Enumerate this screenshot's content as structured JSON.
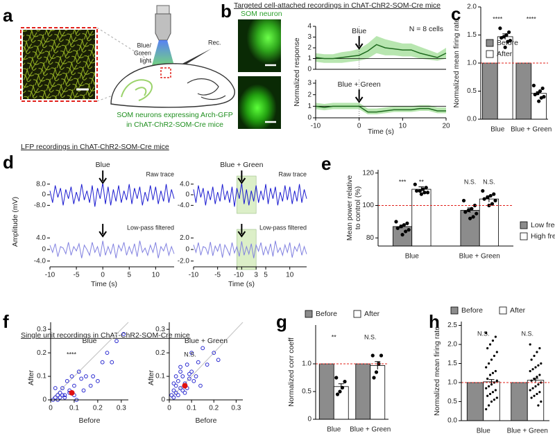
{
  "figure": {
    "panel_labels": [
      "a",
      "b",
      "c",
      "d",
      "e",
      "f",
      "g",
      "h"
    ],
    "panel_a": {
      "light_label": [
        "Blue/",
        "Green",
        "light"
      ],
      "rec_label": "Rec.",
      "caption": [
        "SOM neurons expressing Arch-GFP",
        "in ChAT-ChR2-SOM-Cre mice"
      ]
    },
    "panel_b": {
      "heading": "Targeted cell-attached recordings in ChAT-ChR2-SOM-Cre mice",
      "image_label": "SOM neuron"
    },
    "panel_d": {
      "heading": "LFP recordings in ChAT-ChR2-SOM-Cre mice"
    },
    "panel_f": {
      "heading": "Single unit recordings in ChAT-ChR2-SOM-Cre mice"
    }
  },
  "chart_data": [
    {
      "type": "line",
      "ylabel": "Normalized response",
      "annotation": "Blue",
      "note": "N = 8 cells",
      "event_x": 0,
      "reference_line": 1,
      "x": [
        -10,
        -8,
        -6,
        -4,
        -2,
        0,
        2,
        4,
        6,
        8,
        10,
        12,
        14,
        16,
        18,
        20
      ],
      "xlim": [
        -10,
        20
      ],
      "ylim": [
        0,
        4
      ],
      "yticks": [
        0,
        1,
        2,
        3,
        4
      ],
      "series": [
        {
          "color": "#1e6b1e",
          "band_color": "#b8e6b0",
          "values": [
            1.1,
            1.0,
            1.0,
            1.1,
            1.2,
            1.3,
            1.7,
            2.3,
            2.0,
            1.9,
            1.8,
            1.8,
            1.5,
            1.3,
            1.1,
            1.5
          ],
          "lower": [
            0.7,
            0.6,
            0.6,
            0.6,
            0.7,
            0.8,
            1.0,
            1.5,
            1.3,
            1.3,
            1.2,
            1.2,
            1.0,
            0.9,
            0.8,
            1.0
          ],
          "upper": [
            1.5,
            1.4,
            1.4,
            1.6,
            1.7,
            1.9,
            2.4,
            3.1,
            2.8,
            2.6,
            2.4,
            2.4,
            2.1,
            1.8,
            1.5,
            2.0
          ]
        }
      ]
    },
    {
      "type": "line",
      "xlabel": "Time (s)",
      "annotation": "Blue + Green",
      "event_x": 0,
      "reference_line": 1,
      "x": [
        -10,
        -8,
        -6,
        -4,
        -2,
        0,
        2,
        4,
        6,
        8,
        10,
        12,
        14,
        16,
        18,
        20
      ],
      "xlim": [
        -10,
        20
      ],
      "xticks": [
        -10,
        0,
        10,
        20
      ],
      "ylim": [
        0,
        3.3
      ],
      "yticks": [
        0,
        1,
        2,
        3
      ],
      "series": [
        {
          "color": "#1e6b1e",
          "band_color": "#b8e6b0",
          "values": [
            1.0,
            0.9,
            1.0,
            1.0,
            1.0,
            1.0,
            0.5,
            0.5,
            0.6,
            0.7,
            0.7,
            0.7,
            0.8,
            0.8,
            0.6,
            0.6
          ],
          "lower": [
            0.75,
            0.65,
            0.75,
            0.75,
            0.75,
            0.75,
            0.3,
            0.3,
            0.4,
            0.5,
            0.5,
            0.5,
            0.6,
            0.6,
            0.4,
            0.4
          ],
          "upper": [
            1.3,
            1.2,
            1.3,
            1.3,
            1.3,
            1.3,
            0.8,
            0.8,
            0.9,
            1.0,
            1.0,
            1.0,
            1.1,
            1.1,
            0.9,
            0.9
          ]
        }
      ]
    },
    {
      "type": "bar",
      "ylabel": "Normalized mean firing rate",
      "categories": [
        "Blue",
        "Blue + Green"
      ],
      "ylim": [
        0,
        2
      ],
      "yticks": [
        {
          "value": 0,
          "label": "0.0"
        },
        0.5,
        {
          "value": 1,
          "label": "1.0"
        },
        1.5,
        {
          "value": 2,
          "label": "2.0"
        }
      ],
      "reference_line": 1,
      "legend": "upper right",
      "significance": [
        "****",
        "****"
      ],
      "series": [
        {
          "name": "Before",
          "color": "#8c8c8c",
          "values": [
            1,
            1
          ]
        },
        {
          "name": "After",
          "color": "#ffffff",
          "values": [
            1.47,
            0.46
          ],
          "errors": [
            0.05,
            0.03
          ],
          "points": [
            [
              1.62,
              1.55,
              1.5,
              1.47,
              1.45,
              1.4,
              1.38,
              1.28
            ],
            [
              0.6,
              0.55,
              0.5,
              0.46,
              0.44,
              0.4,
              0.38,
              0.32
            ]
          ]
        }
      ]
    },
    {
      "type": "trace",
      "color": "#1a1ad0",
      "annotation": "Blue",
      "note": "Raw trace",
      "event_x": 0,
      "ylabel": "Amplitude (mV)",
      "x": [
        -10,
        -9.5,
        -9,
        -8.5,
        -8,
        -7.5,
        -7,
        -6.5,
        -6,
        -5.5,
        -5,
        -4.5,
        -4,
        -3.5,
        -3,
        -2.5,
        -2,
        -1.5,
        -1,
        -0.5,
        0,
        0.5,
        1,
        1.5,
        2,
        2.5,
        3,
        3.5,
        4,
        4.5,
        5,
        5.5,
        6,
        6.5,
        7,
        7.5,
        8,
        8.5,
        9,
        9.5,
        10,
        10.5,
        11,
        11.5,
        12,
        12.5,
        13,
        13.5
      ],
      "values": [
        3,
        -6,
        7,
        -2,
        5,
        -8,
        4,
        -3,
        6,
        -7,
        2,
        -5,
        8,
        -4,
        3,
        -6,
        7,
        -9,
        5,
        -3,
        9,
        -7,
        6,
        -8,
        4,
        -5,
        7,
        -6,
        3,
        -4,
        8,
        -7,
        5,
        -3,
        6,
        -8,
        2,
        -5,
        7,
        -4,
        6,
        -7,
        3,
        -5,
        8,
        -6,
        4,
        -3
      ],
      "xlim": [
        -10,
        13.5
      ],
      "ylim": [
        -12,
        12
      ],
      "yticks": [
        {
          "value": 8,
          "label": "8.0"
        },
        0,
        {
          "value": -8,
          "label": "-8.0"
        }
      ]
    },
    {
      "type": "trace",
      "color": "#8080e0",
      "note": "Low-pass filtered",
      "event_x": 0,
      "xlabel": "Time (s)",
      "x": [
        -10,
        -9.5,
        -9,
        -8.5,
        -8,
        -7.5,
        -7,
        -6.5,
        -6,
        -5.5,
        -5,
        -4.5,
        -4,
        -3.5,
        -3,
        -2.5,
        -2,
        -1.5,
        -1,
        -0.5,
        0,
        0.5,
        1,
        1.5,
        2,
        2.5,
        3,
        3.5,
        4,
        4.5,
        5,
        5.5,
        6,
        6.5,
        7,
        7.5,
        8,
        8.5,
        9,
        9.5,
        10,
        10.5,
        11,
        11.5,
        12,
        12.5,
        13,
        13.5
      ],
      "values": [
        1.5,
        -1,
        2,
        -2.5,
        1,
        0.5,
        -1.5,
        2.5,
        -2,
        1,
        -0.5,
        2,
        -3,
        1.5,
        0,
        -2,
        2.5,
        -1,
        1,
        -2.5,
        3,
        -2,
        1,
        -1.5,
        2,
        -3,
        1.5,
        -0.5,
        2.5,
        -2,
        1,
        -1.5,
        2,
        -2.5,
        3,
        -1,
        0.5,
        -2,
        1.5,
        -1,
        2.5,
        -3,
        1,
        -0.5,
        2,
        -2,
        1,
        -1.5
      ],
      "xlim": [
        -10,
        13.5
      ],
      "xticks": [
        -10,
        -5,
        0,
        5,
        10
      ],
      "ylim": [
        -6,
        6
      ],
      "yticks": [
        {
          "value": 4,
          "label": "4.0"
        },
        0,
        {
          "value": -4,
          "label": "-4.0"
        }
      ]
    },
    {
      "type": "trace",
      "color": "#1a1ad0",
      "annotation": "Blue + Green",
      "note": "Raw trace",
      "event_x": 0,
      "shade": [
        -1,
        3
      ],
      "x": [
        -10,
        -9.5,
        -9,
        -8.5,
        -8,
        -7.5,
        -7,
        -6.5,
        -6,
        -5.5,
        -5,
        -4.5,
        -4,
        -3.5,
        -3,
        -2.5,
        -2,
        -1.5,
        -1,
        -0.5,
        0,
        0.5,
        1,
        1.5,
        2,
        2.5,
        3,
        3.5,
        4,
        4.5,
        5,
        5.5,
        6,
        6.5,
        7,
        7.5,
        8,
        8.5,
        9,
        9.5,
        10,
        10.5,
        11,
        11.5,
        12,
        12.5,
        13,
        13.5
      ],
      "values": [
        2,
        -3,
        3.5,
        -1,
        2.5,
        -4,
        1.5,
        -2,
        3,
        -3.5,
        1,
        -2.5,
        4,
        -2,
        1.5,
        -3,
        3,
        -4.5,
        2.5,
        -1.5,
        4.5,
        -3.5,
        2,
        -4,
        1.5,
        -2.5,
        3.5,
        -3,
        1.5,
        -2,
        4,
        -3.5,
        2.5,
        -1.5,
        3,
        -4,
        1,
        -2.5,
        3.5,
        -2,
        3,
        -3.5,
        1.5,
        -2.5,
        4,
        -3,
        2,
        -1.5
      ],
      "xlim": [
        -10,
        13.5
      ],
      "ylim": [
        -6,
        6
      ],
      "yticks": [
        {
          "value": 4,
          "label": "4.0"
        },
        0,
        {
          "value": -4,
          "label": "-4.0"
        }
      ]
    },
    {
      "type": "trace",
      "color": "#8080e0",
      "note": "Low-pass filtered",
      "event_x": 0,
      "shade": [
        -1,
        3
      ],
      "xlabel": "Time (s)",
      "x": [
        -10,
        -9.5,
        -9,
        -8.5,
        -8,
        -7.5,
        -7,
        -6.5,
        -6,
        -5.5,
        -5,
        -4.5,
        -4,
        -3.5,
        -3,
        -2.5,
        -2,
        -1.5,
        -1,
        -0.5,
        0,
        0.5,
        1,
        1.5,
        2,
        2.5,
        3,
        3.5,
        4,
        4.5,
        5,
        5.5,
        6,
        6.5,
        7,
        7.5,
        8,
        8.5,
        9,
        9.5,
        10,
        10.5,
        11,
        11.5,
        12,
        12.5,
        13,
        13.5
      ],
      "values": [
        0.8,
        -0.5,
        1.2,
        -1,
        0.5,
        0.3,
        -0.8,
        1.3,
        -1.1,
        0.6,
        -0.3,
        1,
        -1.4,
        0.8,
        0,
        -1,
        1.2,
        -0.6,
        0.5,
        -1.2,
        1.4,
        -1,
        0.5,
        -0.8,
        1,
        -1.5,
        0.8,
        -0.3,
        1.2,
        -1,
        0.5,
        -0.8,
        1,
        -1.2,
        1.5,
        -0.5,
        0.3,
        -1,
        0.8,
        -0.5,
        1.2,
        -1.4,
        0.5,
        -0.3,
        1,
        -1,
        0.5,
        -0.8
      ],
      "xlim": [
        -10,
        13.5
      ],
      "xticks": [
        -10,
        -5,
        -1,
        0,
        3,
        5,
        10
      ],
      "ylim": [
        -3,
        3
      ],
      "yticks": [
        {
          "value": 2,
          "label": "2.0"
        },
        0,
        {
          "value": -2,
          "label": "-2.0"
        }
      ]
    },
    {
      "type": "bar",
      "ylabel": [
        "Mean power relative",
        "to control (%)"
      ],
      "categories": [
        "Blue",
        "Blue + Green"
      ],
      "ylim": [
        75,
        122
      ],
      "yticks": [
        80,
        100,
        120
      ],
      "reference_line": 100,
      "legend": "center right",
      "series": [
        {
          "name": "Low freq",
          "color": "#8c8c8c",
          "values": [
            87,
            97
          ],
          "errors": [
            1,
            1.5
          ],
          "significance": [
            "***",
            "N.S."
          ],
          "points": [
            [
              90,
              89,
              88,
              87,
              86,
              85,
              84,
              82
            ],
            [
              103,
              100,
              98,
              97,
              96,
              95,
              93,
              92
            ]
          ]
        },
        {
          "name": "High freq",
          "color": "#ffffff",
          "values": [
            110,
            104
          ],
          "errors": [
            1.5,
            2
          ],
          "significance": [
            "**",
            "N.S."
          ],
          "points": [
            [
              113,
              111,
              110,
              109,
              109,
              108,
              108,
              107
            ],
            [
              109,
              107,
              106,
              105,
              104,
              103,
              101,
              100
            ]
          ]
        }
      ]
    },
    {
      "type": "scatter",
      "title": "Blue",
      "annotation": "****",
      "xlabel": "Before",
      "ylabel": "After",
      "xlim": [
        0,
        0.33
      ],
      "ylim": [
        0,
        0.33
      ],
      "xticks": [
        0,
        0.1,
        0.2,
        0.3
      ],
      "yticks": [
        0,
        0.1,
        0.2,
        0.3
      ],
      "diagonal": true,
      "color": "#2a2ad0",
      "mean_color": "#e01010",
      "x": [
        0.02,
        0.03,
        0.03,
        0.04,
        0.05,
        0.05,
        0.06,
        0.07,
        0.08,
        0.09,
        0.1,
        0.1,
        0.12,
        0.13,
        0.15,
        0.18,
        0.2,
        0.22,
        0.24,
        0.26,
        0.28,
        0.31,
        0.01,
        0.02,
        0.04,
        0.06,
        0.08,
        0.11,
        0.14,
        0.17
      ],
      "y": [
        0.01,
        0.02,
        0,
        0.03,
        0.02,
        0.05,
        0.01,
        0.08,
        0.03,
        0.1,
        0.02,
        0.06,
        0.12,
        0.09,
        0.1,
        0.1,
        0.08,
        0.16,
        0.2,
        0.16,
        0.25,
        0.28,
        0,
        0.05,
        0.01,
        0.02,
        0.04,
        0,
        0.04,
        0.06
      ],
      "mean": {
        "x": 0.09,
        "y": 0.03
      }
    },
    {
      "type": "scatter",
      "title": "Blue + Green",
      "annotation": "N.S.",
      "xlabel": "Before",
      "ylabel": "After",
      "xlim": [
        0,
        0.33
      ],
      "ylim": [
        0,
        0.33
      ],
      "xticks": [
        0,
        0.1,
        0.2,
        0.3
      ],
      "yticks": [
        0,
        0.1,
        0.2,
        0.3
      ],
      "diagonal": true,
      "color": "#2a2ad0",
      "mean_color": "#e01010",
      "x": [
        0.01,
        0.02,
        0.02,
        0.03,
        0.03,
        0.04,
        0.04,
        0.05,
        0.05,
        0.06,
        0.06,
        0.07,
        0.08,
        0.08,
        0.09,
        0.1,
        0.1,
        0.11,
        0.12,
        0.14,
        0.15,
        0.17,
        0.2,
        0.22,
        0.03,
        0.05,
        0.07,
        0.09,
        0.13,
        0.02
      ],
      "y": [
        0.02,
        0.01,
        0.04,
        0.03,
        0.06,
        0.02,
        0.08,
        0.05,
        0.12,
        0.04,
        0.1,
        0.07,
        0.15,
        0.05,
        0.09,
        0.2,
        0.12,
        0.08,
        0.1,
        0.06,
        0.22,
        0.15,
        0.2,
        0.17,
        0.1,
        0.14,
        0.03,
        0.11,
        0.16,
        0.07
      ],
      "mean": {
        "x": 0.07,
        "y": 0.06
      }
    },
    {
      "type": "bar",
      "ylabel": "Normalized corr coeff",
      "categories": [
        "Blue",
        "Blue + Green"
      ],
      "ylim": [
        0,
        1.7
      ],
      "yticks": [
        0,
        0.5,
        {
          "value": 1,
          "label": "1.0"
        }
      ],
      "reference_line": 1,
      "legend": "top",
      "significance": [
        "**",
        "N.S."
      ],
      "series": [
        {
          "name": "Before",
          "color": "#8c8c8c",
          "values": [
            1,
            1
          ]
        },
        {
          "name": "After",
          "color": "#ffffff",
          "values": [
            0.59,
            0.97
          ],
          "errors": [
            0.05,
            0.07
          ],
          "points": [
            [
              0.75,
              0.68,
              0.57,
              0.5,
              0.45
            ],
            [
              1.15,
              1.15,
              1.0,
              0.85,
              0.75
            ]
          ]
        }
      ]
    },
    {
      "type": "bar",
      "ylabel": "Normalized mean firing rate",
      "categories": [
        "Blue",
        "Blue + Green"
      ],
      "ylim": [
        0,
        2.6
      ],
      "yticks": [
        {
          "value": 0,
          "label": "0.0"
        },
        0.5,
        {
          "value": 1,
          "label": "1.0"
        },
        1.5,
        {
          "value": 2,
          "label": "2.0"
        },
        2.5
      ],
      "reference_line": 1,
      "legend": "top",
      "significance": [
        "N.S.",
        "N.S."
      ],
      "series": [
        {
          "name": "Before",
          "color": "#8c8c8c",
          "values": [
            1,
            1
          ]
        },
        {
          "name": "After",
          "color": "#ffffff",
          "values": [
            1.02,
            1.06
          ],
          "errors": [
            0.06,
            0.05
          ],
          "points": [
            [
              2.3,
              2.2,
              2.1,
              2.0,
              1.9,
              1.8,
              1.7,
              1.6,
              1.5,
              1.4,
              1.3,
              1.25,
              1.2,
              1.1,
              1.05,
              1.0,
              0.95,
              0.9,
              0.85,
              0.8,
              0.75,
              0.7,
              0.65,
              0.6,
              0.55,
              0.5,
              0.4,
              0.3
            ],
            [
              2.0,
              1.9,
              1.8,
              1.7,
              1.6,
              1.5,
              1.45,
              1.4,
              1.35,
              1.3,
              1.2,
              1.15,
              1.1,
              1.05,
              1.0,
              0.95,
              0.9,
              0.85,
              0.8,
              0.75,
              0.7,
              0.65,
              0.6,
              0.5,
              0.4
            ]
          ]
        }
      ]
    }
  ]
}
